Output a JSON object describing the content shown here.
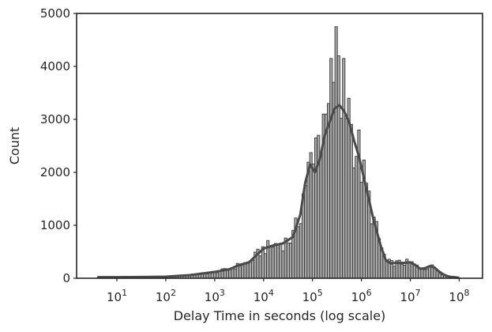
{
  "chart_data": {
    "type": "histogram",
    "xlabel": "Delay Time in seconds (log scale)",
    "ylabel": "Count",
    "x_scale": "log",
    "xlim": [
      1.5,
      300000000
    ],
    "ylim": [
      0,
      5000
    ],
    "grid": false,
    "legend": "none",
    "colors": {
      "bar_fill": "#a9a9a9",
      "bar_edge": "#3a3a3a",
      "kde_line": "#4a4a4a",
      "axes": "#262626"
    },
    "x_ticks": [
      {
        "base": "10",
        "exp": "1",
        "value": 10
      },
      {
        "base": "10",
        "exp": "2",
        "value": 100
      },
      {
        "base": "10",
        "exp": "3",
        "value": 1000
      },
      {
        "base": "10",
        "exp": "4",
        "value": 10000
      },
      {
        "base": "10",
        "exp": "5",
        "value": 100000
      },
      {
        "base": "10",
        "exp": "6",
        "value": 1000000
      },
      {
        "base": "10",
        "exp": "7",
        "value": 10000000
      },
      {
        "base": "10",
        "exp": "8",
        "value": 100000000
      }
    ],
    "y_ticks": [
      {
        "label": "0",
        "value": 0
      },
      {
        "label": "1000",
        "value": 1000
      },
      {
        "label": "2000",
        "value": 2000
      },
      {
        "label": "3000",
        "value": 3000
      },
      {
        "label": "4000",
        "value": 4000
      },
      {
        "label": "5000",
        "value": 5000
      }
    ],
    "histogram_log10_range": [
      0.6,
      8.0
    ],
    "kde_curve": {
      "log10_x": [
        0.6,
        1.0,
        1.5,
        2.0,
        2.5,
        3.0,
        3.3,
        3.5,
        3.7,
        3.85,
        4.0,
        4.2,
        4.4,
        4.6,
        4.75,
        4.85,
        4.95,
        5.05,
        5.15,
        5.25,
        5.35,
        5.45,
        5.55,
        5.65,
        5.75,
        5.85,
        5.95,
        6.1,
        6.25,
        6.4,
        6.5,
        6.6,
        6.7,
        6.85,
        7.0,
        7.1,
        7.2,
        7.3,
        7.4,
        7.5,
        7.6,
        7.7,
        7.8,
        7.9,
        8.0
      ],
      "count": [
        20,
        20,
        25,
        30,
        60,
        120,
        170,
        250,
        300,
        430,
        560,
        620,
        660,
        780,
        1200,
        1800,
        2150,
        2000,
        2250,
        2700,
        2950,
        3200,
        3270,
        3150,
        2950,
        2600,
        2300,
        1700,
        1100,
        600,
        340,
        280,
        290,
        290,
        300,
        250,
        180,
        190,
        230,
        200,
        120,
        60,
        30,
        20,
        10
      ]
    },
    "spikes": [
      {
        "log10_x": 5.05,
        "count": 2650
      },
      {
        "log10_x": 5.12,
        "count": 2700
      },
      {
        "log10_x": 5.25,
        "count": 3100
      },
      {
        "log10_x": 5.31,
        "count": 3300
      },
      {
        "log10_x": 5.38,
        "count": 4150
      },
      {
        "log10_x": 5.44,
        "count": 3700
      },
      {
        "log10_x": 5.49,
        "count": 4750
      },
      {
        "log10_x": 5.55,
        "count": 4200
      },
      {
        "log10_x": 5.62,
        "count": 4150
      },
      {
        "log10_x": 5.75,
        "count": 3400
      },
      {
        "log10_x": 5.95,
        "count": 2800
      }
    ]
  }
}
